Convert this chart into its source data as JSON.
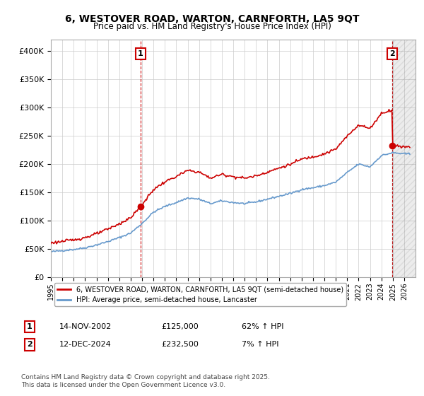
{
  "title_line1": "6, WESTOVER ROAD, WARTON, CARNFORTH, LA5 9QT",
  "title_line2": "Price paid vs. HM Land Registry's House Price Index (HPI)",
  "legend_label1": "6, WESTOVER ROAD, WARTON, CARNFORTH, LA5 9QT (semi-detached house)",
  "legend_label2": "HPI: Average price, semi-detached house, Lancaster",
  "annotation1_label": "1",
  "annotation1_date": "14-NOV-2002",
  "annotation1_price": "£125,000",
  "annotation1_hpi": "62% ↑ HPI",
  "annotation2_label": "2",
  "annotation2_date": "12-DEC-2024",
  "annotation2_price": "£232,500",
  "annotation2_hpi": "7% ↑ HPI",
  "footnote": "Contains HM Land Registry data © Crown copyright and database right 2025.\nThis data is licensed under the Open Government Licence v3.0.",
  "line1_color": "#cc0000",
  "line2_color": "#6699cc",
  "vline_color": "#cc0000",
  "background_color": "#ffffff",
  "grid_color": "#cccccc",
  "ylim": [
    0,
    420000
  ],
  "xlim_start": 1995.0,
  "xlim_end": 2027.0,
  "sale1_year": 2002.87,
  "sale1_price": 125000,
  "sale2_year": 2024.95,
  "sale2_price": 232500,
  "marker_color": "#cc0000"
}
